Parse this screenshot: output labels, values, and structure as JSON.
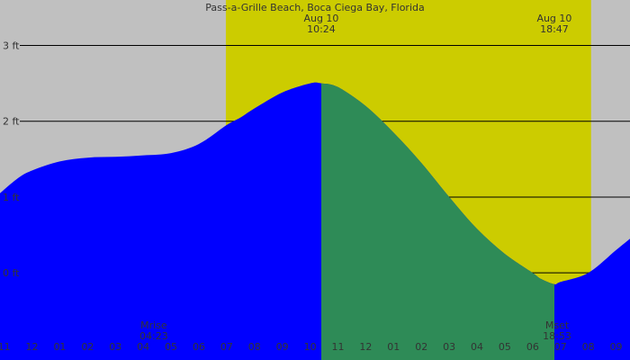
{
  "chart_data": {
    "type": "area",
    "title": "Pass-a-Grille Beach, Boca Ciega Bay, Florida",
    "y_unit": "ft",
    "ylim": [
      -1.15,
      3.6
    ],
    "y_ticks": [
      {
        "value": 3,
        "label": "3 ft"
      },
      {
        "value": 2,
        "label": "2 ft"
      },
      {
        "value": 1,
        "label": "1 ft"
      },
      {
        "value": 0,
        "label": "0 ft"
      }
    ],
    "x_unit": "hour",
    "xlim": [
      -1.15,
      21.5
    ],
    "hour_ticks": [
      {
        "hour": -1,
        "label": "11"
      },
      {
        "hour": 0,
        "label": "12"
      },
      {
        "hour": 1,
        "label": "01"
      },
      {
        "hour": 2,
        "label": "02"
      },
      {
        "hour": 3,
        "label": "03"
      },
      {
        "hour": 4,
        "label": "04"
      },
      {
        "hour": 5,
        "label": "05"
      },
      {
        "hour": 6,
        "label": "06"
      },
      {
        "hour": 7,
        "label": "07"
      },
      {
        "hour": 8,
        "label": "08"
      },
      {
        "hour": 9,
        "label": "09"
      },
      {
        "hour": 10,
        "label": "10"
      },
      {
        "hour": 11,
        "label": "11"
      },
      {
        "hour": 12,
        "label": "12"
      },
      {
        "hour": 13,
        "label": "01"
      },
      {
        "hour": 14,
        "label": "02"
      },
      {
        "hour": 15,
        "label": "03"
      },
      {
        "hour": 16,
        "label": "04"
      },
      {
        "hour": 17,
        "label": "05"
      },
      {
        "hour": 18,
        "label": "06"
      },
      {
        "hour": 19,
        "label": "07"
      },
      {
        "hour": 20,
        "label": "08"
      },
      {
        "hour": 21,
        "label": "09"
      }
    ],
    "daylight": {
      "start_hour": 6.97,
      "end_hour": 20.1
    },
    "tide_series": {
      "x": [
        -1.15,
        -0.5,
        0,
        1,
        2,
        3,
        4,
        5,
        6,
        7,
        7.5,
        8,
        9,
        10,
        10.4,
        11,
        12,
        13,
        14,
        15,
        16,
        17,
        18,
        18.3,
        18.78,
        19,
        20,
        21,
        21.5
      ],
      "y": [
        1.05,
        1.25,
        1.35,
        1.47,
        1.52,
        1.53,
        1.55,
        1.58,
        1.7,
        1.95,
        2.05,
        2.17,
        2.38,
        2.5,
        2.5,
        2.45,
        2.2,
        1.85,
        1.45,
        1.0,
        0.58,
        0.25,
        0.0,
        -0.08,
        -0.15,
        -0.12,
        0.0,
        0.3,
        0.45
      ]
    },
    "highlight_range": {
      "start_hour": 10.4,
      "end_hour": 18.78
    },
    "events": [
      {
        "kind": "high",
        "date": "Aug 10",
        "time": "10:24",
        "hour": 10.4
      },
      {
        "kind": "low",
        "date": "Aug 10",
        "time": "18:47",
        "hour": 18.78
      }
    ],
    "moon": [
      {
        "label": "Mrise",
        "time": "04:23",
        "hour": 4.38
      },
      {
        "label": "Mset",
        "time": "18:53",
        "hour": 18.88
      }
    ],
    "colors": {
      "night": "#c0c0c0",
      "day": "#cccc00",
      "tide": "#0000ff",
      "tide_highlight": "#2e8b57",
      "grid": "#000000",
      "moon_tick": "#cc00cc",
      "text": "#333333"
    }
  }
}
